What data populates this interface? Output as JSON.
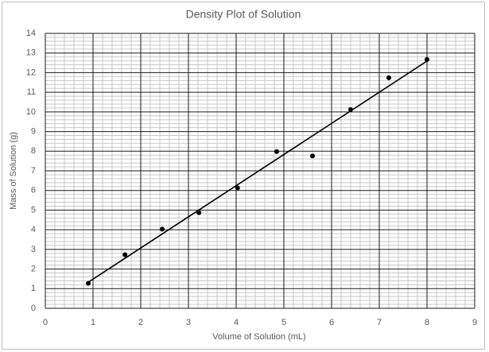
{
  "chart_data": {
    "type": "scatter",
    "title": "Density Plot of Solution",
    "x_label": "Volume of Solution (mL)",
    "y_label": "Mass of Solution (g)",
    "x": [
      0.9,
      1.67,
      2.45,
      3.22,
      4.03,
      4.85,
      5.6,
      6.4,
      7.2,
      8.0
    ],
    "values": [
      1.27,
      2.73,
      4.03,
      4.87,
      6.13,
      7.98,
      7.76,
      10.12,
      11.74,
      12.67
    ],
    "color": "#000000",
    "xlim": [
      0,
      9
    ],
    "xticks": [
      0,
      1,
      2,
      3,
      4,
      5,
      6,
      7,
      8,
      9
    ],
    "ylim": [
      0,
      14
    ],
    "yticks": [
      0,
      1,
      2,
      3,
      4,
      5,
      6,
      7,
      8,
      9,
      10,
      11,
      12,
      13,
      14
    ],
    "grid": true,
    "minor_grid_divisions": 5,
    "trendline": "linear"
  }
}
